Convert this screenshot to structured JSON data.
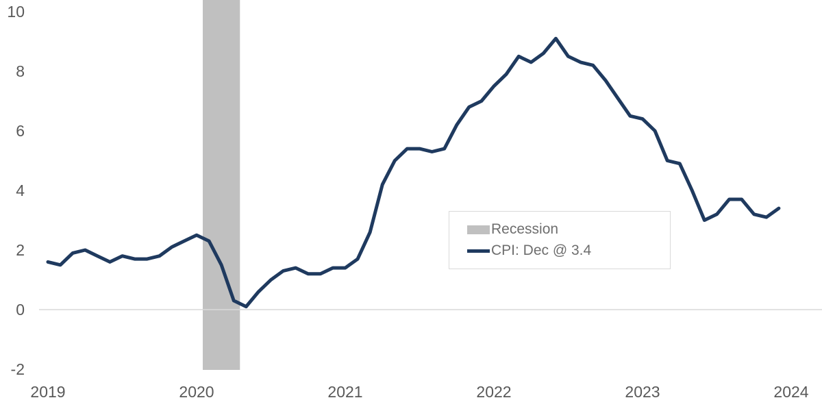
{
  "colors": {
    "line": "#1f3a5f",
    "recession_band": "#c0c0c0",
    "axis_text": "#595959",
    "legend_text": "#6e6e6e",
    "zero_line": "#d9d9d9",
    "legend_border": "#d9d9d9",
    "background": "#ffffff"
  },
  "legend": {
    "items": [
      {
        "label": "Recession",
        "swatch": "band",
        "color": "#c0c0c0"
      },
      {
        "label": "CPI: Dec @ 3.4",
        "swatch": "line",
        "color": "#1f3a5f"
      }
    ]
  },
  "chart_data": {
    "type": "line",
    "title": "",
    "xlabel": "",
    "ylabel": "",
    "xlim": [
      "2019-01",
      "2024-01"
    ],
    "ylim": [
      -2,
      10
    ],
    "x_ticks": [
      "2019",
      "2020",
      "2021",
      "2022",
      "2023",
      "2024"
    ],
    "y_ticks": [
      10,
      8,
      6,
      4,
      2,
      0,
      -2
    ],
    "grid": "zero-line-only",
    "legend_position": "center-right",
    "recession_bands": [
      {
        "start": "2020-02",
        "end": "2020-04",
        "color": "#c0c0c0"
      }
    ],
    "series": [
      {
        "name": "CPI: Dec @ 3.4",
        "color": "#1f3a5f",
        "start_month": "2019-01",
        "frequency": "monthly",
        "values": [
          1.6,
          1.5,
          1.9,
          2.0,
          1.8,
          1.6,
          1.8,
          1.7,
          1.7,
          1.8,
          2.1,
          2.3,
          2.5,
          2.3,
          1.5,
          0.3,
          0.1,
          0.6,
          1.0,
          1.3,
          1.4,
          1.2,
          1.2,
          1.4,
          1.4,
          1.7,
          2.6,
          4.2,
          5.0,
          5.4,
          5.4,
          5.3,
          5.4,
          6.2,
          6.8,
          7.0,
          7.5,
          7.9,
          8.5,
          8.3,
          8.6,
          9.1,
          8.5,
          8.3,
          8.2,
          7.7,
          7.1,
          6.5,
          6.4,
          6.0,
          5.0,
          4.9,
          4.0,
          3.0,
          3.2,
          3.7,
          3.7,
          3.2,
          3.1,
          3.4
        ]
      }
    ]
  }
}
